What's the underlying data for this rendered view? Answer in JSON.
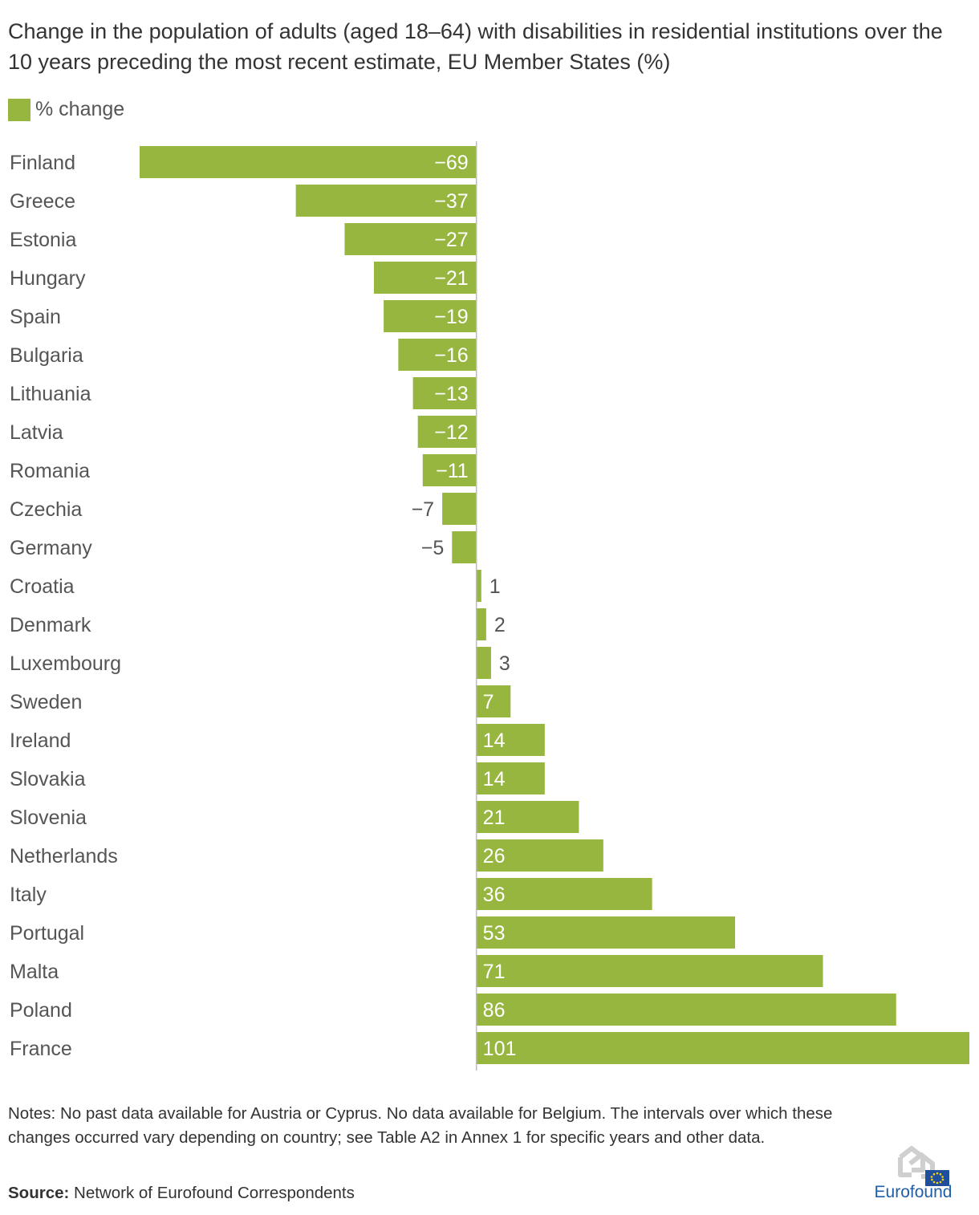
{
  "title": "Change in the population of adults (aged 18–64) with disabilities in residential institutions over the 10 years preceding the most recent estimate, EU Member States (%)",
  "legend": {
    "label": "% change",
    "color": "#97b640"
  },
  "notes": "Notes: No past data available for Austria or Cyprus. No data available for Belgium. The intervals over which these changes occurred vary depending on country; see Table A2 in Annex 1 for specific years and other data.",
  "source": {
    "label": "Source:",
    "text": "Network of Eurofound Correspondents"
  },
  "logo": {
    "text": "Eurofound",
    "icon": "eurofound-logo-icon"
  },
  "chart_data": {
    "type": "bar",
    "orientation": "horizontal",
    "categories": [
      "Finland",
      "Greece",
      "Estonia",
      "Hungary",
      "Spain",
      "Bulgaria",
      "Lithuania",
      "Latvia",
      "Romania",
      "Czechia",
      "Germany",
      "Croatia",
      "Denmark",
      "Luxembourg",
      "Sweden",
      "Ireland",
      "Slovakia",
      "Slovenia",
      "Netherlands",
      "Italy",
      "Portugal",
      "Malta",
      "Poland",
      "France"
    ],
    "series": [
      {
        "name": "% change",
        "values": [
          -69,
          -37,
          -27,
          -21,
          -19,
          -16,
          -13,
          -12,
          -11,
          -7,
          -5,
          1,
          2,
          3,
          7,
          14,
          14,
          21,
          26,
          36,
          53,
          71,
          86,
          101
        ]
      }
    ],
    "value_labels": [
      "−69",
      "−37",
      "−27",
      "−21",
      "−19",
      "−16",
      "−13",
      "−12",
      "−11",
      "−7",
      "−5",
      "1",
      "2",
      "3",
      "7",
      "14",
      "14",
      "21",
      "26",
      "36",
      "53",
      "71",
      "86",
      "101"
    ],
    "xlim": [
      -69,
      101
    ],
    "color": "#97b640",
    "axis_color": "#bbbbbb",
    "label_color_inside": "#ffffff",
    "label_color_outside": "#555555",
    "legend_position": "top-left",
    "grid": false
  }
}
